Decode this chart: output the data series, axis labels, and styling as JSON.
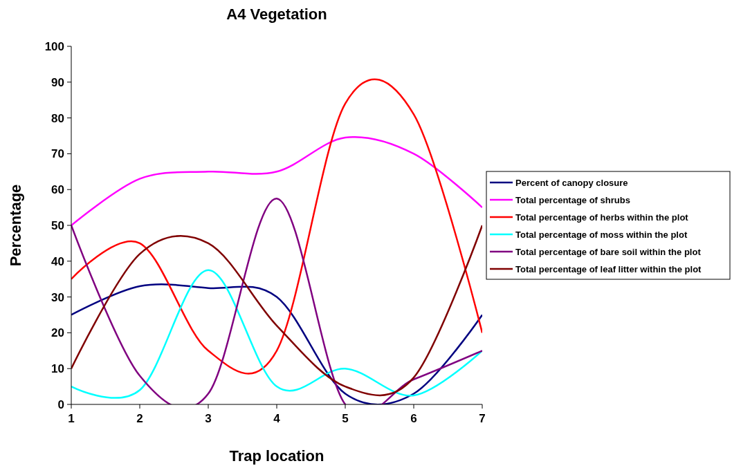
{
  "chart_data": {
    "type": "line",
    "title": "A4 Vegetation",
    "xlabel": "Trap location",
    "ylabel": "Percentage",
    "x": [
      1,
      2,
      3,
      4,
      5,
      6,
      7
    ],
    "xlim": [
      1,
      7
    ],
    "xticks": [
      1,
      2,
      3,
      4,
      5,
      6,
      7
    ],
    "ylim": [
      0,
      100
    ],
    "yticks": [
      0,
      10,
      20,
      30,
      40,
      50,
      60,
      70,
      80,
      90,
      100
    ],
    "series": [
      {
        "name": "Percent of canopy closure",
        "color": "#000080",
        "values": [
          25,
          33,
          32.5,
          30,
          3,
          3,
          25
        ]
      },
      {
        "name": "Total percentage of shrubs",
        "color": "#ff00ff",
        "values": [
          50,
          63,
          65,
          65,
          74.5,
          70,
          55
        ]
      },
      {
        "name": "Total percentage of herbs within the plot",
        "color": "#ff0000",
        "values": [
          35,
          45,
          15,
          15,
          84,
          81,
          20
        ]
      },
      {
        "name": "Total percentage of moss within the plot",
        "color": "#00ffff",
        "values": [
          5,
          4,
          37.5,
          5,
          10,
          2.5,
          15
        ]
      },
      {
        "name": "Total percentage of bare soil within the plot",
        "color": "#800080",
        "values": [
          50,
          8,
          3,
          57.5,
          0,
          7,
          15
        ]
      },
      {
        "name": "Total percentage of leaf litter within the plot",
        "color": "#800000",
        "values": [
          10,
          42,
          45,
          22,
          5,
          7.5,
          50
        ]
      }
    ],
    "legend": "right",
    "marker": "none",
    "line_style": "solid",
    "grid": false
  }
}
